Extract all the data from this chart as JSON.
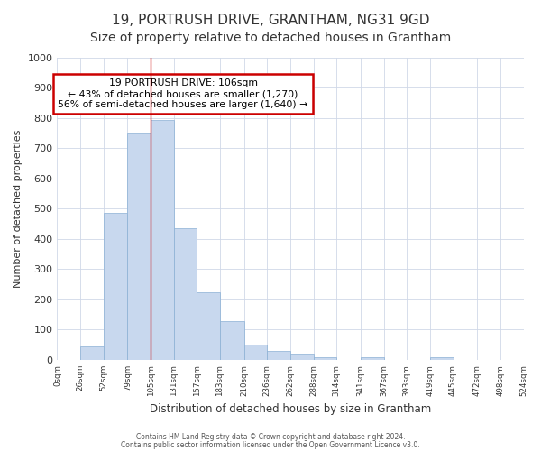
{
  "title": "19, PORTRUSH DRIVE, GRANTHAM, NG31 9GD",
  "subtitle": "Size of property relative to detached houses in Grantham",
  "xlabel": "Distribution of detached houses by size in Grantham",
  "ylabel": "Number of detached properties",
  "bar_color": "#c8d8ee",
  "bar_edge_color": "#8aafd4",
  "bar_left_edges": [
    0,
    26,
    52,
    79,
    105,
    131,
    157,
    183,
    210,
    236,
    262,
    288,
    314,
    341,
    367,
    393,
    419,
    445,
    472,
    498
  ],
  "bar_widths": [
    26,
    26,
    27,
    26,
    26,
    26,
    26,
    27,
    26,
    26,
    26,
    26,
    27,
    26,
    26,
    26,
    26,
    27,
    26,
    26
  ],
  "bar_heights": [
    0,
    45,
    485,
    748,
    793,
    435,
    223,
    128,
    52,
    30,
    17,
    10,
    0,
    8,
    0,
    0,
    10,
    0,
    0,
    0
  ],
  "xtick_labels": [
    "0sqm",
    "26sqm",
    "52sqm",
    "79sqm",
    "105sqm",
    "131sqm",
    "157sqm",
    "183sqm",
    "210sqm",
    "236sqm",
    "262sqm",
    "288sqm",
    "314sqm",
    "341sqm",
    "367sqm",
    "393sqm",
    "419sqm",
    "445sqm",
    "472sqm",
    "498sqm",
    "524sqm"
  ],
  "xtick_positions": [
    0,
    26,
    52,
    79,
    105,
    131,
    157,
    183,
    210,
    236,
    262,
    288,
    314,
    341,
    367,
    393,
    419,
    445,
    472,
    498,
    524
  ],
  "ylim": [
    0,
    1000
  ],
  "ytick_positions": [
    0,
    100,
    200,
    300,
    400,
    500,
    600,
    700,
    800,
    900,
    1000
  ],
  "property_line_x": 105,
  "property_line_color": "#cc0000",
  "annotation_line1": "19 PORTRUSH DRIVE: 106sqm",
  "annotation_line2": "← 43% of detached houses are smaller (1,270)",
  "annotation_line3": "56% of semi-detached houses are larger (1,640) →",
  "annotation_box_color": "#cc0000",
  "background_color": "#ffffff",
  "grid_color": "#d0d8e8",
  "title_fontsize": 11,
  "subtitle_fontsize": 10,
  "footer_line1": "Contains HM Land Registry data © Crown copyright and database right 2024.",
  "footer_line2": "Contains public sector information licensed under the Open Government Licence v3.0."
}
